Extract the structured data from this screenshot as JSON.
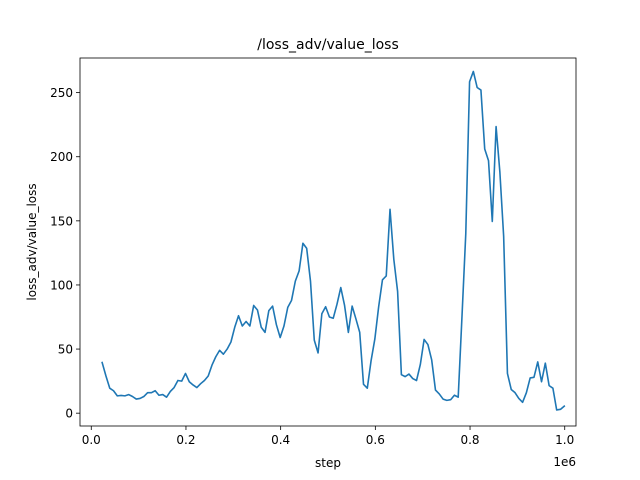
{
  "chart_data": {
    "type": "line",
    "title": "/loss_adv/value_loss",
    "xlabel": "step",
    "ylabel": "loss_adv/value_loss",
    "x_offset_label": "1e6",
    "xlim": [
      -0.0238,
      1.0238
    ],
    "ylim": [
      -10,
      277
    ],
    "x_ticks": [
      0.0,
      0.2,
      0.4,
      0.6,
      0.8,
      1.0
    ],
    "x_tick_labels": [
      "0.0",
      "0.2",
      "0.4",
      "0.6",
      "0.8",
      "1.0"
    ],
    "y_ticks": [
      0,
      50,
      100,
      150,
      200,
      250
    ],
    "y_tick_labels": [
      "0",
      "50",
      "100",
      "150",
      "200",
      "250"
    ],
    "grid": false,
    "series": [
      {
        "color": "#1f77b4",
        "x": [
          0.023,
          0.031,
          0.039,
          0.047,
          0.055,
          0.063,
          0.071,
          0.079,
          0.087,
          0.095,
          0.103,
          0.111,
          0.119,
          0.127,
          0.135,
          0.143,
          0.151,
          0.159,
          0.167,
          0.175,
          0.183,
          0.191,
          0.199,
          0.207,
          0.215,
          0.223,
          0.231,
          0.239,
          0.247,
          0.255,
          0.263,
          0.271,
          0.279,
          0.287,
          0.295,
          0.303,
          0.311,
          0.319,
          0.327,
          0.335,
          0.343,
          0.351,
          0.359,
          0.367,
          0.375,
          0.383,
          0.391,
          0.399,
          0.407,
          0.415,
          0.423,
          0.431,
          0.439,
          0.447,
          0.455,
          0.463,
          0.471,
          0.479,
          0.487,
          0.495,
          0.503,
          0.511,
          0.519,
          0.527,
          0.535,
          0.543,
          0.551,
          0.559,
          0.567,
          0.575,
          0.583,
          0.591,
          0.599,
          0.607,
          0.615,
          0.623,
          0.631,
          0.639,
          0.647,
          0.655,
          0.663,
          0.671,
          0.679,
          0.687,
          0.695,
          0.703,
          0.711,
          0.719,
          0.727,
          0.735,
          0.743,
          0.751,
          0.759,
          0.767,
          0.775,
          0.783,
          0.791,
          0.799,
          0.807,
          0.815,
          0.823,
          0.831,
          0.839,
          0.847,
          0.855,
          0.863,
          0.871,
          0.879,
          0.887,
          0.895,
          0.903,
          0.911,
          0.919,
          0.927,
          0.935,
          0.943,
          0.951,
          0.959,
          0.967,
          0.975,
          0.983,
          0.991,
          0.999
        ],
        "y": [
          39.5,
          29.0,
          19.5,
          17.5,
          13.5,
          13.8,
          13.5,
          14.5,
          13.0,
          11.0,
          11.5,
          13.0,
          16.0,
          16.0,
          17.5,
          14.0,
          14.5,
          12.5,
          17.0,
          20.0,
          25.5,
          25.0,
          31.0,
          24.5,
          22.0,
          20.0,
          23.0,
          25.5,
          29.0,
          37.5,
          44.0,
          49.0,
          46.0,
          50.0,
          55.5,
          67.0,
          76.0,
          68.0,
          71.5,
          68.0,
          84.0,
          80.5,
          67.0,
          63.0,
          80.0,
          83.5,
          69.0,
          59.0,
          68.0,
          82.5,
          88.0,
          103.0,
          111.0,
          132.5,
          128.5,
          103.0,
          57.0,
          47.0,
          77.5,
          83.0,
          75.0,
          74.0,
          85.0,
          98.0,
          84.0,
          63.0,
          83.5,
          73.5,
          63.0,
          22.5,
          19.5,
          41.0,
          58.0,
          83.0,
          104.0,
          107.0,
          159.0,
          120.0,
          95.0,
          30.0,
          28.5,
          30.5,
          27.0,
          25.5,
          38.0,
          57.5,
          53.5,
          41.5,
          18.0,
          15.0,
          11.0,
          10.0,
          10.5,
          14.0,
          12.5,
          75.5,
          140.0,
          258.5,
          266.5,
          254.0,
          252.0,
          206.0,
          197.0,
          149.5,
          223.5,
          188.0,
          138.0,
          31.0,
          18.5,
          16.0,
          11.5,
          8.5,
          16.0,
          27.5,
          28.0,
          40.0,
          24.5,
          39.0,
          21.5,
          19.5,
          2.5,
          3.0,
          5.5
        ]
      }
    ]
  }
}
